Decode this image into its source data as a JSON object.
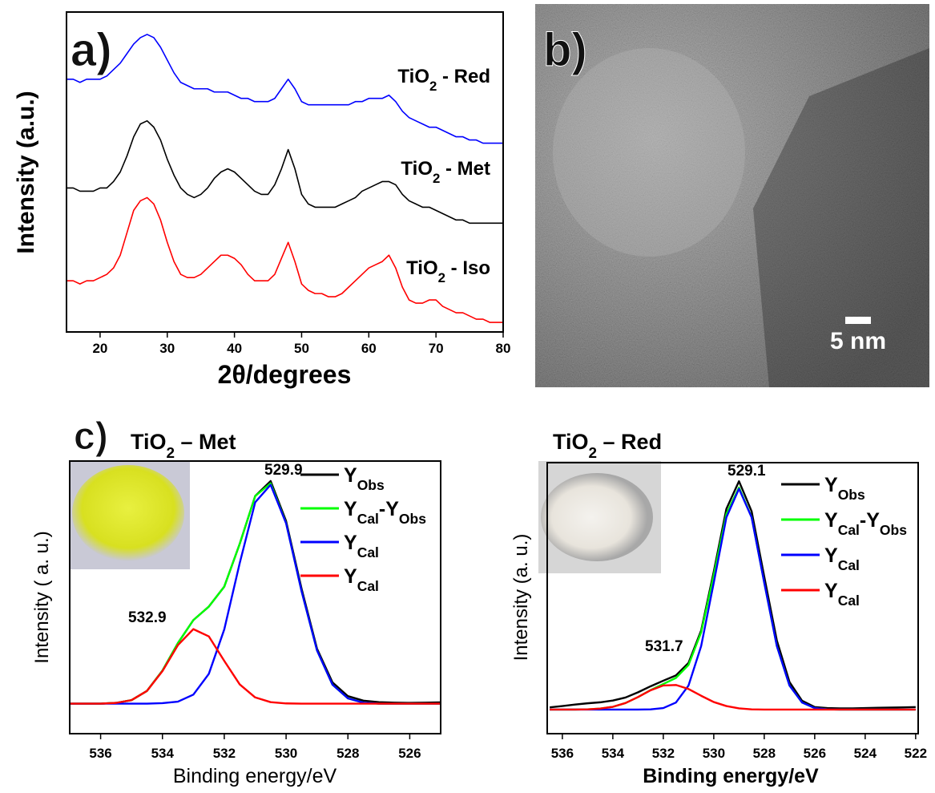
{
  "chart_data": [
    {
      "type": "line",
      "label": "a)",
      "x_label": "2θ/degrees",
      "y_label": "Intensity (a.u.)",
      "xlim": [
        15,
        80
      ],
      "ylim": [
        0,
        100
      ],
      "xticks": [
        20,
        30,
        40,
        50,
        60,
        70,
        80
      ],
      "x": [
        15,
        16,
        17,
        18,
        19,
        20,
        21,
        22,
        23,
        24,
        25,
        26,
        27,
        28,
        29,
        30,
        31,
        32,
        33,
        34,
        35,
        36,
        37,
        38,
        39,
        40,
        41,
        42,
        43,
        44,
        45,
        46,
        47,
        48,
        49,
        50,
        51,
        52,
        53,
        54,
        55,
        56,
        57,
        58,
        59,
        60,
        61,
        62,
        63,
        64,
        65,
        66,
        67,
        68,
        69,
        70,
        71,
        72,
        73,
        74,
        75,
        76,
        77,
        78,
        79,
        80
      ],
      "series": [
        {
          "name": "TiO2 - Red",
          "color": "#0000ff",
          "values": [
            79,
            79,
            78,
            79,
            79,
            79,
            80,
            82,
            84,
            87,
            90,
            92,
            93,
            92,
            89,
            85,
            81,
            78,
            77,
            76,
            76,
            76,
            75,
            75,
            75,
            74,
            73,
            73,
            72,
            72,
            72,
            73,
            76,
            79,
            76,
            72,
            71,
            71,
            71,
            71,
            71,
            71,
            71,
            72,
            72,
            73,
            73,
            73,
            74,
            72,
            69,
            67,
            66,
            65,
            64,
            64,
            63,
            62,
            61,
            61,
            60,
            60,
            59,
            59,
            59,
            59
          ]
        },
        {
          "name": "TiO2 - Met",
          "color": "#000000",
          "values": [
            45,
            45,
            44,
            44,
            44,
            45,
            45,
            47,
            50,
            55,
            61,
            65,
            66,
            64,
            60,
            54,
            49,
            45,
            43,
            42,
            43,
            45,
            48,
            50,
            51,
            50,
            48,
            46,
            44,
            43,
            43,
            46,
            51,
            57,
            51,
            43,
            40,
            39,
            39,
            39,
            39,
            40,
            41,
            42,
            44,
            45,
            46,
            47,
            47,
            46,
            43,
            41,
            40,
            39,
            39,
            38,
            37,
            36,
            35,
            35,
            34,
            34,
            34,
            34,
            34,
            34
          ]
        },
        {
          "name": "TiO2 - Iso",
          "color": "#ff0000",
          "values": [
            16,
            16,
            15,
            16,
            16,
            17,
            18,
            20,
            24,
            31,
            38,
            41,
            42,
            40,
            35,
            28,
            22,
            18,
            17,
            17,
            18,
            20,
            22,
            24,
            24,
            23,
            21,
            18,
            16,
            16,
            16,
            18,
            23,
            28,
            22,
            15,
            13,
            12,
            12,
            11,
            11,
            12,
            14,
            16,
            18,
            20,
            21,
            22,
            24,
            20,
            14,
            10,
            9,
            9,
            10,
            10,
            8,
            7,
            6,
            6,
            5,
            4,
            4,
            3,
            3,
            3
          ]
        }
      ]
    },
    {
      "type": "image",
      "label": "b)",
      "scale_bar": "5 nm"
    },
    {
      "type": "line",
      "label": "c)",
      "title": "TiO2 – Met",
      "x_label": "Binding energy/eV",
      "y_label": "Intensity ( a. u.)",
      "xlim": [
        537,
        525
      ],
      "ylim": [
        -12,
        97
      ],
      "xticks": [
        536,
        534,
        532,
        530,
        528,
        526
      ],
      "peak_labels": [
        529.9,
        532.9
      ],
      "x": [
        537,
        536.5,
        536,
        535.5,
        535,
        534.5,
        534,
        533.5,
        533,
        532.5,
        532,
        531.5,
        531,
        530.5,
        530,
        529.5,
        529,
        528.5,
        528,
        527.5,
        527,
        526.5,
        526,
        525.5,
        525
      ],
      "series": [
        {
          "name": "YObs",
          "color": "#000000",
          "values": [
            0,
            0,
            0,
            0.3,
            1.4,
            5.1,
            13.2,
            24.2,
            33.4,
            38.8,
            46.8,
            63.9,
            83.0,
            89,
            73,
            46,
            22,
            8.5,
            3,
            1.2,
            0.6,
            0.4,
            0.3,
            0.4,
            0.5
          ]
        },
        {
          "name": "YCal-YObs",
          "color": "#00ff00",
          "values": [
            0,
            0,
            0,
            0.3,
            1.4,
            5.1,
            13.2,
            24.2,
            33.4,
            38.8,
            46.8,
            63.9,
            83.0,
            88.1,
            72.2,
            45,
            21.3,
            7.6,
            2.1,
            0.4,
            0,
            0,
            0,
            0,
            0
          ]
        },
        {
          "name": "YCal",
          "color": "#0000ff",
          "values": [
            0,
            0,
            0,
            0,
            0,
            0,
            0.2,
            0.8,
            3.6,
            11.9,
            29.7,
            56.2,
            80.5,
            87.5,
            72.1,
            45,
            21.3,
            7.6,
            2.1,
            0.4,
            0,
            0,
            0,
            0,
            0
          ]
        },
        {
          "name": "YCal",
          "color": "#ff0000",
          "values": [
            0,
            0,
            0,
            0.3,
            1.4,
            5.1,
            13,
            23.4,
            29.8,
            26.9,
            17.1,
            7.7,
            2.5,
            0.6,
            0.1,
            0,
            0,
            0,
            0,
            0,
            0,
            0,
            0,
            0,
            0
          ]
        }
      ]
    },
    {
      "type": "line",
      "title": "TiO2 – Red",
      "x_label": "Binding energy/eV",
      "y_label": "Intensity (a. u.)",
      "xlim": [
        536.6,
        521.9
      ],
      "ylim": [
        -9.6,
        98.4
      ],
      "xticks": [
        536,
        534,
        532,
        530,
        528,
        526,
        524,
        522
      ],
      "peak_labels": [
        529.1,
        531.7
      ],
      "x": [
        536.5,
        536,
        535.5,
        535,
        534.5,
        534,
        533.5,
        533,
        532.5,
        532,
        531.5,
        531,
        530.5,
        530,
        529.5,
        529,
        528.5,
        528,
        527.5,
        527,
        526.5,
        526,
        525.5,
        525,
        524.5,
        524,
        523.5,
        523,
        522.5,
        522
      ],
      "series": [
        {
          "name": "YObs",
          "color": "#000000",
          "values": [
            0.9,
            1.4,
            2,
            2.5,
            2.9,
            3.6,
            4.8,
            6.9,
            9.3,
            11.5,
            13.6,
            18.6,
            31.5,
            55,
            80,
            91,
            79,
            53,
            27.5,
            11,
            3.5,
            1,
            0.6,
            0.5,
            0.5,
            0.6,
            0.7,
            0.8,
            0.9,
            1.0
          ]
        },
        {
          "name": "YCal-YObs",
          "color": "#00ff00",
          "values": [
            0,
            0,
            0,
            0.1,
            0.4,
            1.1,
            2.6,
            5,
            7.8,
            10.2,
            12.6,
            17.8,
            30.8,
            53.6,
            78,
            88.5,
            76.7,
            50.6,
            25.3,
            9.6,
            2.8,
            0.6,
            0.1,
            0,
            0,
            0,
            0,
            0,
            0,
            0
          ]
        },
        {
          "name": "YCal",
          "color": "#0000ff",
          "values": [
            0,
            0,
            0,
            0,
            0,
            0,
            0,
            0,
            0.1,
            0.6,
            2.8,
            9.6,
            25.3,
            50.6,
            76.6,
            88,
            76.6,
            50.6,
            25.3,
            9.6,
            2.8,
            0.6,
            0.1,
            0,
            0,
            0,
            0,
            0,
            0,
            0
          ]
        },
        {
          "name": "YCal",
          "color": "#ff0000",
          "values": [
            0,
            0,
            0,
            0.1,
            0.4,
            1.1,
            2.6,
            5,
            7.7,
            9.6,
            9.8,
            8.2,
            5.5,
            3,
            1.4,
            0.5,
            0.1,
            0,
            0,
            0,
            0,
            0,
            0,
            0,
            0,
            0,
            0,
            0,
            0,
            0
          ]
        }
      ]
    }
  ]
}
